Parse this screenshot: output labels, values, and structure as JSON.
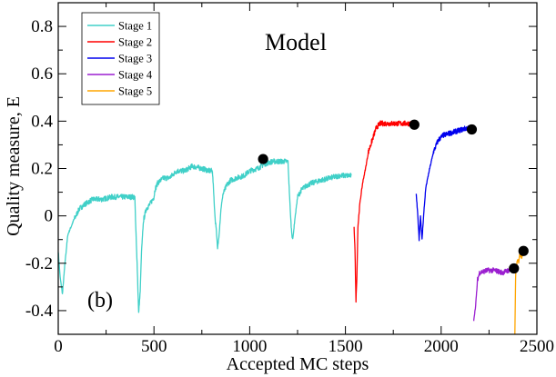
{
  "chart_data": {
    "type": "line",
    "title": "Model",
    "panel_label": "(b)",
    "xlabel": "Accepted MC steps",
    "ylabel": "Quality measure, E",
    "xlim": [
      0,
      2500
    ],
    "ylim": [
      -0.5,
      0.9
    ],
    "xticks": [
      0,
      500,
      1000,
      1500,
      2000,
      2500
    ],
    "yticks": [
      -0.4,
      -0.2,
      0,
      0.2,
      0.4,
      0.6,
      0.8
    ],
    "ytick_labels": [
      "-0.4",
      "-0.2",
      "0",
      "0.2",
      "0.4",
      "0.6",
      "0.8"
    ],
    "legend_position": "top-left",
    "series": [
      {
        "name": "Stage 1",
        "color": "#40d0c8",
        "points": [
          [
            0,
            -0.15
          ],
          [
            10,
            -0.26
          ],
          [
            22,
            -0.33
          ],
          [
            35,
            -0.2
          ],
          [
            50,
            -0.08
          ],
          [
            80,
            -0.02
          ],
          [
            110,
            0.03
          ],
          [
            140,
            0.05
          ],
          [
            180,
            0.07
          ],
          [
            230,
            0.07
          ],
          [
            280,
            0.08
          ],
          [
            330,
            0.08
          ],
          [
            380,
            0.08
          ],
          [
            400,
            0.08
          ],
          [
            405,
            -0.05
          ],
          [
            412,
            -0.2
          ],
          [
            420,
            -0.41
          ],
          [
            428,
            -0.32
          ],
          [
            435,
            -0.15
          ],
          [
            445,
            -0.02
          ],
          [
            460,
            0.03
          ],
          [
            480,
            0.05
          ],
          [
            500,
            0.08
          ],
          [
            505,
            0.11
          ],
          [
            520,
            0.14
          ],
          [
            550,
            0.16
          ],
          [
            580,
            0.16
          ],
          [
            620,
            0.19
          ],
          [
            660,
            0.19
          ],
          [
            700,
            0.21
          ],
          [
            750,
            0.2
          ],
          [
            790,
            0.19
          ],
          [
            805,
            0.19
          ],
          [
            812,
            0.1
          ],
          [
            818,
            0.0
          ],
          [
            825,
            -0.05
          ],
          [
            832,
            -0.14
          ],
          [
            840,
            -0.08
          ],
          [
            850,
            0.03
          ],
          [
            860,
            0.09
          ],
          [
            880,
            0.13
          ],
          [
            900,
            0.15
          ],
          [
            930,
            0.16
          ],
          [
            970,
            0.17
          ],
          [
            1000,
            0.19
          ],
          [
            1040,
            0.2
          ],
          [
            1080,
            0.22
          ],
          [
            1120,
            0.23
          ],
          [
            1160,
            0.23
          ],
          [
            1200,
            0.23
          ],
          [
            1205,
            0.14
          ],
          [
            1212,
            0.02
          ],
          [
            1218,
            -0.06
          ],
          [
            1225,
            -0.1
          ],
          [
            1235,
            -0.02
          ],
          [
            1250,
            0.08
          ],
          [
            1270,
            0.11
          ],
          [
            1300,
            0.13
          ],
          [
            1330,
            0.14
          ],
          [
            1370,
            0.15
          ],
          [
            1420,
            0.16
          ],
          [
            1470,
            0.17
          ],
          [
            1500,
            0.17
          ],
          [
            1530,
            0.17
          ]
        ]
      },
      {
        "name": "Stage 2",
        "color": "#ff0000",
        "points": [
          [
            1545,
            -0.05
          ],
          [
            1550,
            -0.14
          ],
          [
            1555,
            -0.36
          ],
          [
            1560,
            -0.25
          ],
          [
            1565,
            -0.05
          ],
          [
            1575,
            0.05
          ],
          [
            1590,
            0.14
          ],
          [
            1605,
            0.2
          ],
          [
            1620,
            0.27
          ],
          [
            1640,
            0.32
          ],
          [
            1660,
            0.37
          ],
          [
            1680,
            0.39
          ],
          [
            1720,
            0.39
          ],
          [
            1760,
            0.39
          ],
          [
            1800,
            0.39
          ],
          [
            1840,
            0.39
          ],
          [
            1860,
            0.39
          ]
        ]
      },
      {
        "name": "Stage 3",
        "color": "#0000ee",
        "points": [
          [
            1870,
            0.09
          ],
          [
            1878,
            0.0
          ],
          [
            1885,
            -0.1
          ],
          [
            1892,
            0.0
          ],
          [
            1900,
            -0.1
          ],
          [
            1910,
            0.02
          ],
          [
            1920,
            0.12
          ],
          [
            1940,
            0.2
          ],
          [
            1960,
            0.27
          ],
          [
            1985,
            0.32
          ],
          [
            2010,
            0.34
          ],
          [
            2050,
            0.35
          ],
          [
            2090,
            0.36
          ],
          [
            2130,
            0.37
          ],
          [
            2160,
            0.37
          ]
        ]
      },
      {
        "name": "Stage 4",
        "color": "#9b1fd0",
        "points": [
          [
            2170,
            -0.44
          ],
          [
            2180,
            -0.38
          ],
          [
            2190,
            -0.27
          ],
          [
            2200,
            -0.24
          ],
          [
            2240,
            -0.23
          ],
          [
            2280,
            -0.23
          ],
          [
            2320,
            -0.24
          ],
          [
            2350,
            -0.23
          ],
          [
            2375,
            -0.23
          ]
        ]
      },
      {
        "name": "Stage 5",
        "color": "#ffa500",
        "points": [
          [
            2385,
            -0.5
          ],
          [
            2388,
            -0.32
          ],
          [
            2390,
            -0.22
          ],
          [
            2395,
            -0.2
          ],
          [
            2405,
            -0.19
          ],
          [
            2410,
            -0.16
          ],
          [
            2420,
            -0.17
          ],
          [
            2430,
            -0.15
          ]
        ]
      }
    ],
    "markers": [
      {
        "x": 1070,
        "y": 0.24,
        "color": "#000000"
      },
      {
        "x": 1860,
        "y": 0.385,
        "color": "#000000"
      },
      {
        "x": 2160,
        "y": 0.365,
        "color": "#000000"
      },
      {
        "x": 2380,
        "y": -0.222,
        "color": "#000000"
      },
      {
        "x": 2430,
        "y": -0.148,
        "color": "#000000"
      }
    ]
  }
}
